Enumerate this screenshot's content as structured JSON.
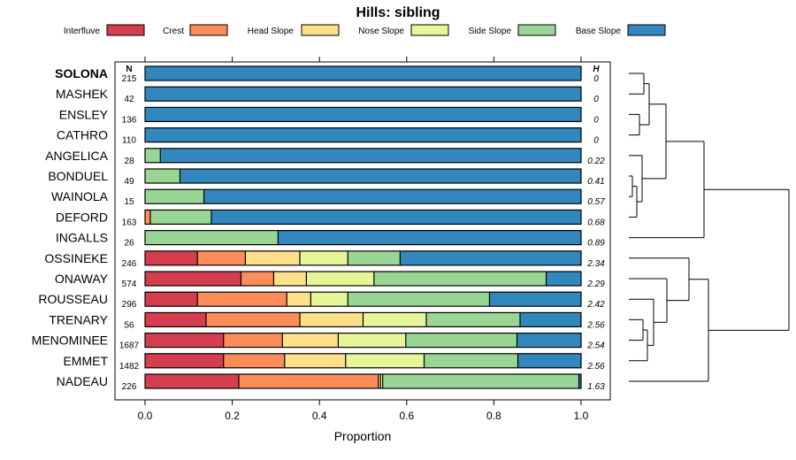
{
  "chart_data": {
    "type": "bar",
    "stacked": true,
    "orientation": "horizontal",
    "title": "Hills: sibling",
    "xlabel": "Proportion",
    "xlim": [
      0,
      1
    ],
    "xticks": [
      0,
      0.2,
      0.4,
      0.6,
      0.8,
      1
    ],
    "xtick_labels": [
      "0.0",
      "0.2",
      "0.4",
      "0.6",
      "0.8",
      "1.0"
    ],
    "legend": {
      "placement": "top",
      "entries": [
        {
          "name": "Interfluve",
          "color": "#D53E4F"
        },
        {
          "name": "Crest",
          "color": "#FC8D59"
        },
        {
          "name": "Head Slope",
          "color": "#FEE08B"
        },
        {
          "name": "Nose Slope",
          "color": "#E6F598"
        },
        {
          "name": "Side Slope",
          "color": "#99D594"
        },
        {
          "name": "Base Slope",
          "color": "#3288BD"
        }
      ]
    },
    "n_header": "N",
    "h_header": "H",
    "bold_category": "SOLONA",
    "categories": [
      "SOLONA",
      "MASHEK",
      "ENSLEY",
      "CATHRO",
      "ANGELICA",
      "BONDUEL",
      "WAINOLA",
      "DEFORD",
      "INGALLS",
      "OSSINEKE",
      "ONAWAY",
      "ROUSSEAU",
      "TRENARY",
      "MENOMINEE",
      "EMMET",
      "NADEAU"
    ],
    "n": [
      "215",
      "42",
      "136",
      "110",
      "28",
      "49",
      "15",
      "163",
      "26",
      "246",
      "574",
      "296",
      "56",
      "1687",
      "1482",
      "226"
    ],
    "h": [
      "0",
      "0",
      "0",
      "0",
      "0.22",
      "0.41",
      "0.57",
      "0.68",
      "0.89",
      "2.34",
      "2.29",
      "2.42",
      "2.56",
      "2.54",
      "2.56",
      "1.63"
    ],
    "series": [
      {
        "name": "Interfluve",
        "values": [
          0,
          0,
          0,
          0,
          0,
          0,
          0,
          0,
          0,
          0.12,
          0.22,
          0.12,
          0.14,
          0.18,
          0.18,
          0.215
        ]
      },
      {
        "name": "Crest",
        "values": [
          0,
          0,
          0,
          0,
          0,
          0,
          0,
          0.012,
          0,
          0.11,
          0.075,
          0.205,
          0.215,
          0.135,
          0.14,
          0.32
        ]
      },
      {
        "name": "Head Slope",
        "values": [
          0,
          0,
          0,
          0,
          0,
          0,
          0,
          0,
          0,
          0.125,
          0.075,
          0.055,
          0.145,
          0.128,
          0.14,
          0.005
        ]
      },
      {
        "name": "Nose Slope",
        "values": [
          0,
          0,
          0,
          0,
          0,
          0,
          0,
          0,
          0,
          0.11,
          0.155,
          0.085,
          0.145,
          0.155,
          0.18,
          0.005
        ]
      },
      {
        "name": "Side Slope",
        "values": [
          0,
          0,
          0,
          0,
          0.035,
          0.08,
          0.135,
          0.14,
          0.305,
          0.12,
          0.395,
          0.325,
          0.215,
          0.255,
          0.215,
          0.45
        ]
      },
      {
        "name": "Base Slope",
        "values": [
          1,
          1,
          1,
          1,
          0.965,
          0.92,
          0.865,
          0.848,
          0.695,
          0.415,
          0.08,
          0.21,
          0.14,
          0.147,
          0.145,
          0.005
        ]
      }
    ],
    "dendrogram": {
      "position": "right",
      "note": "hierarchical clustering of rows"
    }
  }
}
